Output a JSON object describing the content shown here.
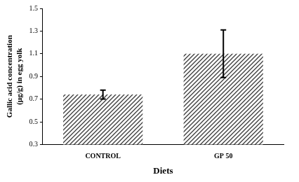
{
  "chart_data": {
    "type": "bar",
    "x_label": "Diets",
    "y_label": [
      "Gallic acid concentration",
      "(µg/g) in egg yolk"
    ],
    "categories": [
      "CONTROL",
      "GP 50"
    ],
    "values": [
      0.74,
      1.1
    ],
    "errors": [
      0.04,
      0.21
    ],
    "color": "#3a3a3a",
    "ylim": [
      0.3,
      1.5
    ],
    "yticks": [
      0.3,
      0.5,
      0.7,
      0.9,
      1.1,
      1.3,
      1.5
    ],
    "grid": false
  }
}
